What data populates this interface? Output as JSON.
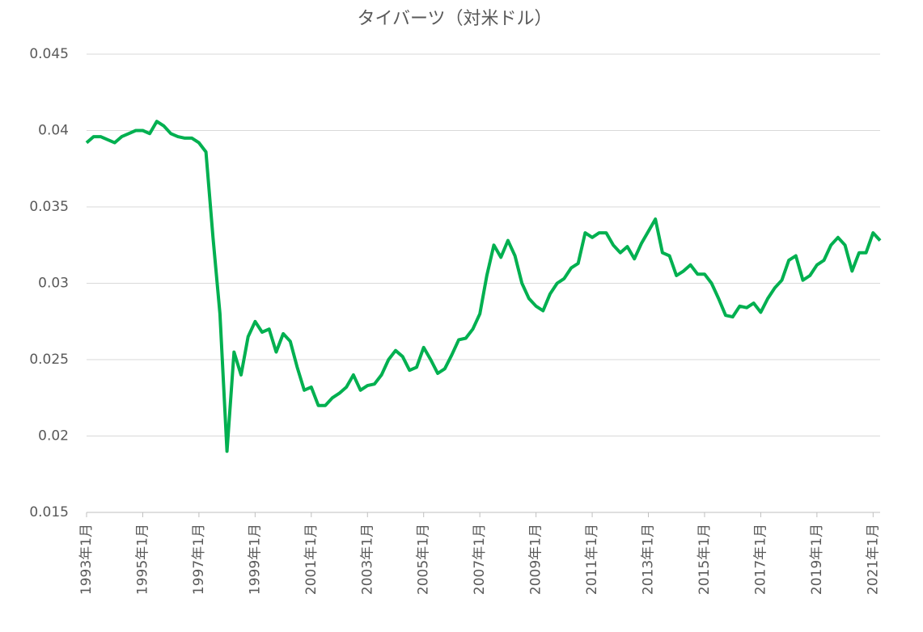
{
  "chart_data": {
    "type": "line",
    "title": "タイバーツ（対米ドル）",
    "categories": [
      "1993年1月",
      null,
      null,
      null,
      null,
      null,
      null,
      null,
      "1995年1月",
      null,
      null,
      null,
      null,
      null,
      null,
      null,
      "1997年1月",
      null,
      null,
      null,
      null,
      null,
      null,
      null,
      "1999年1月",
      null,
      null,
      null,
      null,
      null,
      null,
      null,
      "2001年1月",
      null,
      null,
      null,
      null,
      null,
      null,
      null,
      "2003年1月",
      null,
      null,
      null,
      null,
      null,
      null,
      null,
      "2005年1月",
      null,
      null,
      null,
      null,
      null,
      null,
      null,
      "2007年1月",
      null,
      null,
      null,
      null,
      null,
      null,
      null,
      "2009年1月",
      null,
      null,
      null,
      null,
      null,
      null,
      null,
      "2011年1月",
      null,
      null,
      null,
      null,
      null,
      null,
      null,
      "2013年1月",
      null,
      null,
      null,
      null,
      null,
      null,
      null,
      "2015年1月",
      null,
      null,
      null,
      null,
      null,
      null,
      null,
      "2017年1月",
      null,
      null,
      null,
      null,
      null,
      null,
      null,
      "2019年1月",
      null,
      null,
      null,
      null,
      null,
      null,
      null,
      "2021年1月",
      null
    ],
    "series": [
      {
        "name": "タイバーツ",
        "color": "#00b050",
        "values": [
          0.0392,
          0.0396,
          0.0396,
          0.0394,
          0.0392,
          0.0396,
          0.0398,
          0.04,
          0.04,
          0.0398,
          0.0406,
          0.0403,
          0.0398,
          0.0396,
          0.0395,
          0.0395,
          0.0392,
          0.0386,
          0.033,
          0.028,
          0.019,
          0.0255,
          0.024,
          0.0265,
          0.0275,
          0.0268,
          0.027,
          0.0255,
          0.0267,
          0.0262,
          0.0245,
          0.023,
          0.0232,
          0.022,
          0.022,
          0.0225,
          0.0228,
          0.0232,
          0.024,
          0.023,
          0.0233,
          0.0234,
          0.024,
          0.025,
          0.0256,
          0.0252,
          0.0243,
          0.0245,
          0.0258,
          0.025,
          0.0241,
          0.0244,
          0.0253,
          0.0263,
          0.0264,
          0.027,
          0.028,
          0.0305,
          0.0325,
          0.0317,
          0.0328,
          0.0318,
          0.03,
          0.029,
          0.0285,
          0.0282,
          0.0293,
          0.03,
          0.0303,
          0.031,
          0.0313,
          0.0333,
          0.033,
          0.0333,
          0.0333,
          0.0325,
          0.032,
          0.0324,
          0.0316,
          0.0326,
          0.0334,
          0.0342,
          0.032,
          0.0318,
          0.0305,
          0.0308,
          0.0312,
          0.0306,
          0.0306,
          0.03,
          0.029,
          0.0279,
          0.0278,
          0.0285,
          0.0284,
          0.0287,
          0.0281,
          0.029,
          0.0297,
          0.0302,
          0.0315,
          0.0318,
          0.0302,
          0.0305,
          0.0312,
          0.0315,
          0.0325,
          0.033,
          0.0325,
          0.0308,
          0.032,
          0.032,
          0.0333,
          0.0328
        ]
      }
    ],
    "ylim": [
      0.015,
      0.045
    ],
    "yticks": [
      0.015,
      0.02,
      0.025,
      0.03,
      0.035,
      0.04,
      0.045
    ],
    "grid": true
  }
}
